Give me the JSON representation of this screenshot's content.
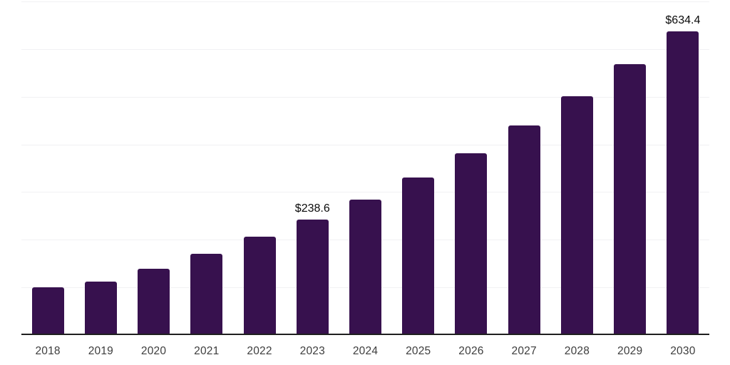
{
  "chart_data": {
    "type": "bar",
    "title": "",
    "xlabel": "",
    "ylabel": "",
    "categories": [
      "2018",
      "2019",
      "2020",
      "2021",
      "2022",
      "2023",
      "2024",
      "2025",
      "2026",
      "2027",
      "2028",
      "2029",
      "2030"
    ],
    "values": [
      97.7,
      109.6,
      136.6,
      167.1,
      203.0,
      238.6,
      281.6,
      327.6,
      378.9,
      436.3,
      497.6,
      565.4,
      634.4
    ],
    "annotations": [
      {
        "category": "2023",
        "text": "$238.6"
      },
      {
        "category": "2030",
        "text": "$634.4"
      }
    ],
    "ylim": [
      0,
      700
    ],
    "gridline_step": 100,
    "grid": true,
    "y_axis_labels_visible": false,
    "legend_position": "none"
  },
  "colors": {
    "background": "#ffffff",
    "bar": "#37114E",
    "gridline": "#f1f1f3",
    "axis_line": "#1f1f1f",
    "tick_label": "#3d3d3d",
    "annotation": "#0a0a0a"
  }
}
